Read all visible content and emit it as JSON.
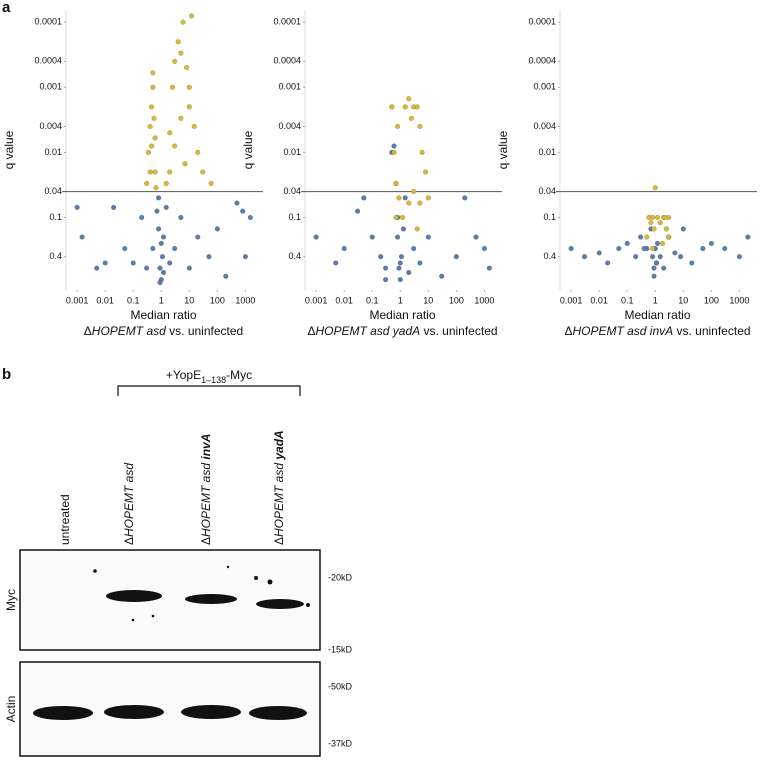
{
  "panel_labels": [
    "a",
    "b"
  ],
  "chart_data": [
    {
      "type": "scatter",
      "xscale": "log",
      "yscale": "log",
      "xlabel": "Median ratio",
      "ylabel": "q value",
      "subtitle": [
        {
          "text": "Δ"
        },
        {
          "text": "HOPEMT asd",
          "italic": true
        },
        {
          "text": " vs. uninfected"
        }
      ],
      "xlim": [
        0.0004,
        3600
      ],
      "ylim": [
        1.3,
        6.5e-05
      ],
      "xticks": [
        0.001,
        0.01,
        0.1,
        1,
        10,
        100,
        1000
      ],
      "yticks": [
        0.0001,
        0.0004,
        0.001,
        0.004,
        0.01,
        0.04,
        0.1,
        0.4
      ],
      "hline": 0.04,
      "series": [
        {
          "color": "#5b7db1",
          "x": [
            0.001,
            0.0015,
            0.005,
            0.01,
            0.02,
            0.05,
            0.1,
            0.2,
            0.3,
            0.5,
            0.7,
            0.8,
            0.9,
            1,
            1.1,
            1.2,
            1.5,
            2,
            3,
            5,
            10,
            20,
            50,
            100,
            200,
            500,
            800,
            1000,
            1500,
            0.8,
            1,
            1.2,
            0.9
          ],
          "values": [
            0.07,
            0.2,
            0.6,
            0.5,
            0.07,
            0.3,
            0.5,
            0.1,
            0.6,
            0.3,
            0.08,
            0.15,
            0.6,
            0.9,
            0.4,
            0.2,
            0.07,
            0.5,
            0.3,
            0.1,
            0.6,
            0.2,
            0.4,
            0.15,
            0.8,
            0.06,
            0.08,
            0.4,
            0.1,
            0.05,
            0.25,
            0.7,
            1.0
          ]
        },
        {
          "color": "#d6b83c",
          "x": [
            0.3,
            0.35,
            0.4,
            0.45,
            0.5,
            0.55,
            0.6,
            0.65,
            0.5,
            0.45,
            0.4,
            0.6,
            1.5,
            2,
            2.5,
            3,
            4,
            5,
            6,
            8,
            10,
            12,
            15,
            20,
            2,
            3,
            5,
            7,
            10,
            30,
            60
          ],
          "values": [
            0.03,
            0.01,
            0.004,
            0.002,
            0.001,
            0.003,
            0.02,
            0.035,
            0.0006,
            0.008,
            0.02,
            0.006,
            0.03,
            0.005,
            0.001,
            0.0004,
            0.0002,
            0.0003,
            0.0001,
            0.0005,
            0.002,
            8e-05,
            0.004,
            0.01,
            0.02,
            0.008,
            0.003,
            0.015,
            0.001,
            0.02,
            0.03
          ]
        }
      ]
    },
    {
      "type": "scatter",
      "xscale": "log",
      "yscale": "log",
      "xlabel": "Median ratio",
      "ylabel": "q value",
      "subtitle": [
        {
          "text": "Δ"
        },
        {
          "text": "HOPEMT asd yadA",
          "italic": true
        },
        {
          "text": " vs. uninfected"
        }
      ],
      "xlim": [
        0.0004,
        3600
      ],
      "ylim": [
        1.3,
        6.5e-05
      ],
      "xticks": [
        0.001,
        0.01,
        0.1,
        1,
        10,
        100,
        1000
      ],
      "yticks": [
        0.0001,
        0.0004,
        0.001,
        0.004,
        0.01,
        0.04,
        0.1,
        0.4
      ],
      "hline": 0.04,
      "series": [
        {
          "color": "#5b7db1",
          "x": [
            0.001,
            0.005,
            0.01,
            0.03,
            0.05,
            0.1,
            0.2,
            0.3,
            0.5,
            0.7,
            0.8,
            0.9,
            1,
            1.1,
            1.3,
            1.5,
            2,
            3,
            5,
            10,
            30,
            100,
            200,
            500,
            1000,
            1500,
            0.6,
            0.8,
            1,
            0.3
          ],
          "values": [
            0.2,
            0.5,
            0.3,
            0.08,
            0.05,
            0.2,
            0.4,
            0.6,
            0.01,
            0.03,
            0.2,
            0.6,
            0.9,
            0.4,
            0.15,
            0.05,
            0.7,
            0.3,
            0.5,
            0.2,
            0.8,
            0.4,
            0.05,
            0.2,
            0.3,
            0.6,
            0.008,
            0.1,
            0.5,
            0.9
          ]
        },
        {
          "color": "#d6b83c",
          "x": [
            0.5,
            0.6,
            0.7,
            0.8,
            0.9,
            1.5,
            2,
            2.5,
            3,
            4,
            5,
            6,
            8,
            3,
            2,
            1.2,
            0.7,
            5,
            10,
            4
          ],
          "values": [
            0.002,
            0.01,
            0.03,
            0.004,
            0.05,
            0.002,
            0.0015,
            0.003,
            0.002,
            0.002,
            0.004,
            0.01,
            0.02,
            0.04,
            0.06,
            0.1,
            0.1,
            0.06,
            0.05,
            0.15
          ]
        }
      ]
    },
    {
      "type": "scatter",
      "xscale": "log",
      "yscale": "log",
      "xlabel": "Median ratio",
      "ylabel": "q value",
      "subtitle": [
        {
          "text": "Δ"
        },
        {
          "text": "HOPEMT asd invA",
          "italic": true
        },
        {
          "text": " vs. uninfected"
        }
      ],
      "xlim": [
        0.0004,
        3600
      ],
      "ylim": [
        1.3,
        6.5e-05
      ],
      "xticks": [
        0.001,
        0.01,
        0.1,
        1,
        10,
        100,
        1000
      ],
      "yticks": [
        0.0001,
        0.0004,
        0.001,
        0.004,
        0.01,
        0.04,
        0.1,
        0.4
      ],
      "hline": 0.04,
      "series": [
        {
          "color": "#5b7db1",
          "x": [
            0.001,
            0.003,
            0.01,
            0.02,
            0.05,
            0.1,
            0.2,
            0.3,
            0.5,
            0.7,
            0.8,
            0.9,
            1,
            1.1,
            1.2,
            1.5,
            2,
            3,
            5,
            8,
            10,
            20,
            50,
            100,
            300,
            1000,
            2000,
            0.9,
            1.1,
            0.4
          ],
          "values": [
            0.3,
            0.4,
            0.35,
            0.5,
            0.3,
            0.25,
            0.4,
            0.2,
            0.3,
            0.15,
            0.4,
            0.6,
            0.3,
            0.5,
            0.25,
            0.4,
            0.6,
            0.2,
            0.35,
            0.4,
            0.15,
            0.5,
            0.3,
            0.25,
            0.3,
            0.4,
            0.2,
            0.8,
            0.5,
            0.3
          ]
        },
        {
          "color": "#d6b83c",
          "x": [
            0.6,
            0.7,
            0.8,
            0.9,
            1.2,
            1.5,
            2,
            2.5,
            3,
            0.5,
            1,
            1.8,
            2.2,
            0.8,
            3
          ],
          "values": [
            0.1,
            0.12,
            0.1,
            0.15,
            0.1,
            0.12,
            0.1,
            0.15,
            0.1,
            0.2,
            0.035,
            0.25,
            0.1,
            0.3,
            0.2
          ]
        }
      ]
    }
  ],
  "blot": {
    "treatment": [
      {
        "text": "+YopE"
      },
      {
        "text": "1–138",
        "sub": true
      },
      {
        "text": "-Myc"
      }
    ],
    "lanes": [
      [
        {
          "text": "untreated"
        }
      ],
      [
        {
          "text": "Δ"
        },
        {
          "text": "HOPEMT asd",
          "italic": true
        }
      ],
      [
        {
          "text": "Δ"
        },
        {
          "text": "HOPEMT asd ",
          "italic": true
        },
        {
          "text": "invA",
          "italic": true,
          "bold": true
        }
      ],
      [
        {
          "text": "Δ"
        },
        {
          "text": "HOPEMT asd ",
          "italic": true
        },
        {
          "text": "yadA",
          "italic": true,
          "bold": true
        }
      ]
    ],
    "rows": [
      "Myc",
      "Actin"
    ],
    "markers": [
      [
        "-20kD",
        "-15kD"
      ],
      [
        "-50kD",
        "-37kD"
      ]
    ]
  }
}
